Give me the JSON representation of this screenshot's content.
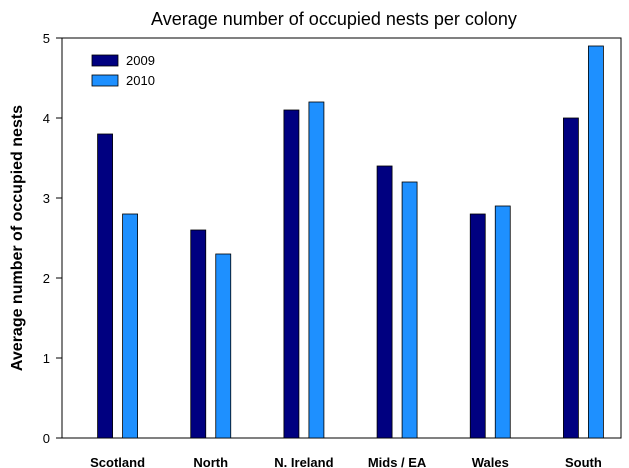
{
  "chart_data": {
    "type": "bar",
    "title": "Average number of occupied nests per colony",
    "xlabel": "",
    "ylabel": "Average number of occupied nests",
    "categories": [
      "Scotland",
      "North",
      "N. Ireland",
      "Mids / EA",
      "Wales",
      "South"
    ],
    "series": [
      {
        "name": "2009",
        "color": "#000080",
        "values": [
          3.8,
          2.6,
          4.1,
          3.4,
          2.8,
          4.0
        ]
      },
      {
        "name": "2010",
        "color": "#1e90ff",
        "values": [
          2.8,
          2.3,
          4.2,
          3.2,
          2.9,
          4.9
        ]
      }
    ],
    "ylim": [
      0,
      5
    ],
    "yticks": [
      0,
      1,
      2,
      3,
      4,
      5
    ],
    "grid": false,
    "legend_position": "top-left"
  }
}
